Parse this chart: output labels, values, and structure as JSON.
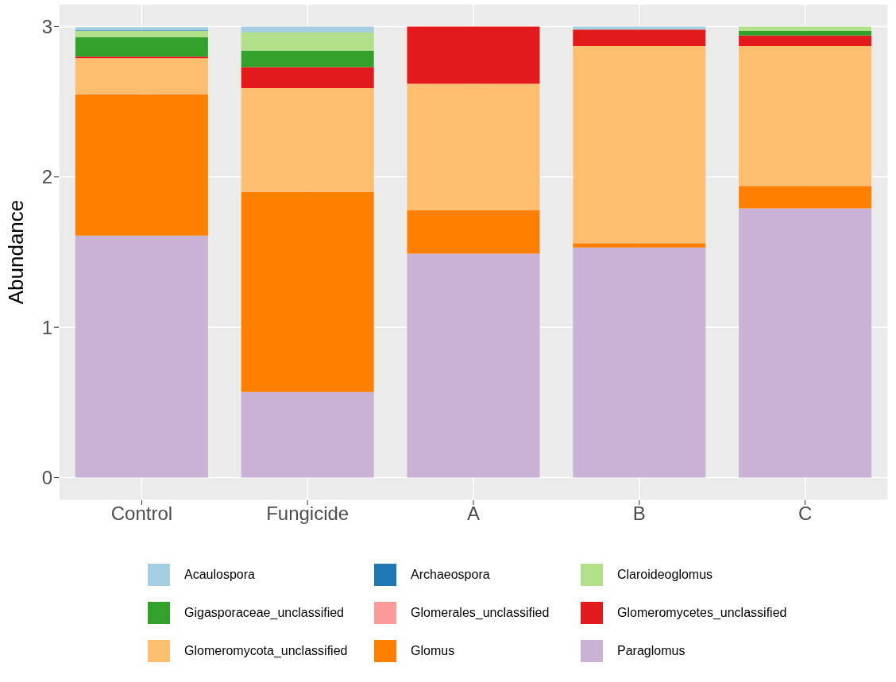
{
  "chart_data": {
    "type": "bar",
    "stacked": true,
    "ylabel": "Abundance",
    "categories": [
      "Control",
      "Fungicide",
      "A",
      "B",
      "C"
    ],
    "series": [
      {
        "name": "Paraglomus",
        "color": "#cab2d6",
        "values": [
          1.61,
          0.57,
          1.49,
          1.53,
          1.79
        ]
      },
      {
        "name": "Glomus",
        "color": "#ff7f00",
        "values": [
          0.94,
          1.33,
          0.29,
          0.03,
          0.15
        ]
      },
      {
        "name": "Glomeromycota_unclassified",
        "color": "#fdbf6f",
        "values": [
          0.24,
          0.69,
          0.84,
          1.31,
          0.93
        ]
      },
      {
        "name": "Glomeromycetes_unclassified",
        "color": "#e31a1c",
        "values": [
          0.01,
          0.14,
          0.38,
          0.11,
          0.07
        ]
      },
      {
        "name": "Glomerales_unclassified",
        "color": "#fb9a99",
        "values": [
          0,
          0,
          0,
          0,
          0
        ]
      },
      {
        "name": "Gigasporaceae_unclassified",
        "color": "#33a02c",
        "values": [
          0.13,
          0.11,
          0,
          0,
          0.03
        ]
      },
      {
        "name": "Claroideoglomus",
        "color": "#b2df8a",
        "values": [
          0.04,
          0.12,
          0,
          0,
          0.03
        ]
      },
      {
        "name": "Archaeospora",
        "color": "#1f78b4",
        "values": [
          0.005,
          0,
          0,
          0,
          0
        ]
      },
      {
        "name": "Acaulospora",
        "color": "#a6cee3",
        "values": [
          0.02,
          0.04,
          0,
          0.02,
          0
        ]
      }
    ],
    "ylim": [
      -0.15,
      3.15
    ],
    "yticks": [
      0,
      1,
      2,
      3
    ],
    "grid": true,
    "legend": "bottom"
  }
}
